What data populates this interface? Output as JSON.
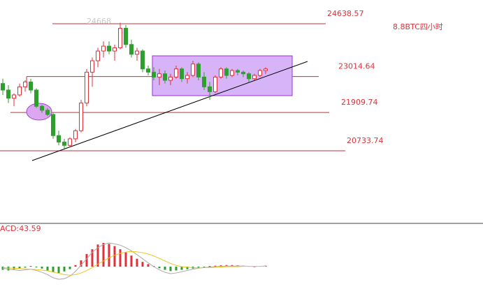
{
  "chart_data": {
    "type": "candlestick",
    "title": "8.8BTC四小时",
    "peak_label": "24668",
    "ylim": [
      18502,
      25368
    ],
    "levels": [
      24638.57,
      23014.64,
      21909.74,
      20733.74
    ],
    "up_color": "#e0303a",
    "down_color": "#2e9e2e",
    "ohlc": [
      [
        22800,
        22950,
        22450,
        22600
      ],
      [
        22600,
        22750,
        22200,
        22350
      ],
      [
        22350,
        22500,
        22100,
        22450
      ],
      [
        22450,
        22800,
        22400,
        22700
      ],
      [
        22700,
        22900,
        22550,
        22850
      ],
      [
        22850,
        22950,
        22500,
        22600
      ],
      [
        22600,
        22650,
        22050,
        22100
      ],
      [
        22100,
        22150,
        21900,
        21980
      ],
      [
        21980,
        22050,
        21800,
        21850
      ],
      [
        21850,
        21900,
        21100,
        21200
      ],
      [
        21200,
        21350,
        20900,
        21000
      ],
      [
        21000,
        21100,
        20800,
        20900
      ],
      [
        20900,
        21150,
        20850,
        21100
      ],
      [
        21100,
        21400,
        21000,
        21350
      ],
      [
        21350,
        22300,
        21300,
        22200
      ],
      [
        22200,
        23250,
        22100,
        23150
      ],
      [
        23150,
        23600,
        22700,
        23500
      ],
      [
        23500,
        23900,
        23300,
        23800
      ],
      [
        23800,
        24100,
        23600,
        23950
      ],
      [
        23950,
        24100,
        23700,
        23800
      ],
      [
        23800,
        24000,
        23500,
        23900
      ],
      [
        23900,
        24668,
        23850,
        24500
      ],
      [
        24500,
        24600,
        23900,
        24000
      ],
      [
        24000,
        24150,
        23600,
        23700
      ],
      [
        23700,
        23900,
        23500,
        23800
      ],
      [
        23800,
        23850,
        23150,
        23250
      ],
      [
        23250,
        23350,
        23050,
        23150
      ],
      [
        23150,
        23300,
        22900,
        23000
      ],
      [
        23000,
        23250,
        22750,
        23100
      ],
      [
        23100,
        23200,
        22800,
        22900
      ],
      [
        22900,
        23100,
        22750,
        23000
      ],
      [
        23000,
        23350,
        22950,
        23250
      ],
      [
        23250,
        23300,
        22850,
        22950
      ],
      [
        22950,
        23150,
        22800,
        23050
      ],
      [
        23050,
        23500,
        23000,
        23400
      ],
      [
        23400,
        23450,
        22900,
        23000
      ],
      [
        23000,
        23150,
        22600,
        22700
      ],
      [
        22700,
        22850,
        22300,
        22550
      ],
      [
        22550,
        23050,
        22500,
        23000
      ],
      [
        23000,
        23300,
        22950,
        23250
      ],
      [
        23250,
        23300,
        22950,
        23050
      ],
      [
        23050,
        23250,
        23000,
        23200
      ],
      [
        23200,
        23250,
        23050,
        23150
      ],
      [
        23150,
        23200,
        23000,
        23100
      ],
      [
        23100,
        23150,
        22850,
        22950
      ],
      [
        22950,
        23100,
        22900,
        23050
      ],
      [
        23050,
        23250,
        23000,
        23200
      ],
      [
        23200,
        23300,
        23100,
        23250
      ]
    ],
    "macd_label": "ACD:43.59",
    "macd_hist": [
      -10,
      -12,
      -8,
      -5,
      -3,
      2,
      -2,
      -6,
      -12,
      -18,
      -20,
      -15,
      -8,
      5,
      20,
      40,
      55,
      70,
      75,
      72,
      65,
      55,
      45,
      35,
      25,
      15,
      8,
      2,
      -5,
      -10,
      -14,
      -12,
      -10,
      -8,
      -6,
      -3,
      -2,
      2,
      3,
      4,
      5,
      5,
      4,
      3,
      2,
      1,
      2,
      3
    ],
    "series": [
      {
        "color": "#aaaaaa",
        "values": [
          -5,
          -8,
          -10,
          -12,
          -10,
          -8,
          -12,
          -18,
          -25,
          -35,
          -40,
          -38,
          -30,
          -15,
          5,
          25,
          45,
          60,
          70,
          75,
          72,
          68,
          60,
          50,
          38,
          25,
          12,
          0,
          -10,
          -18,
          -22,
          -20,
          -16,
          -12,
          -8,
          -5,
          -3,
          -1,
          0,
          1,
          2,
          2,
          2,
          2,
          1,
          1,
          1,
          2
        ]
      },
      {
        "color": "#f0c419",
        "values": [
          -3,
          -4,
          -5,
          -6,
          -7,
          -8,
          -9,
          -11,
          -13,
          -17,
          -21,
          -25,
          -27,
          -25,
          -20,
          -12,
          -3,
          8,
          18,
          28,
          36,
          42,
          46,
          48,
          47,
          44,
          40,
          34,
          26,
          18,
          10,
          4,
          0,
          -2,
          -3,
          -4,
          -3,
          -3,
          -2,
          -1,
          0,
          0,
          0,
          1,
          1,
          1,
          1,
          1
        ]
      }
    ]
  }
}
